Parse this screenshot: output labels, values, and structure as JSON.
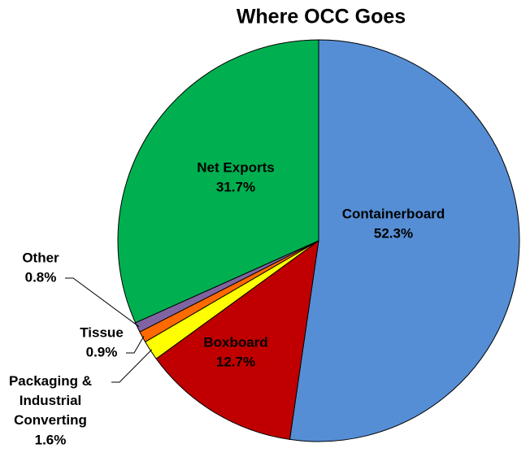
{
  "chart_data": {
    "type": "pie",
    "title": "Where OCC Goes",
    "categories": [
      "Containerboard",
      "Boxboard",
      "Packaging & Industrial Converting",
      "Tissue",
      "Other",
      "Net Exports"
    ],
    "values": [
      52.3,
      12.7,
      1.6,
      0.9,
      0.8,
      31.7
    ],
    "value_labels": [
      "52.3%",
      "12.7%",
      "1.6%",
      "0.9%",
      "0.8%",
      "31.7%"
    ],
    "colors": [
      "#558ed5",
      "#c00000",
      "#ffff00",
      "#ff6a00",
      "#8064a2",
      "#00b050"
    ]
  }
}
